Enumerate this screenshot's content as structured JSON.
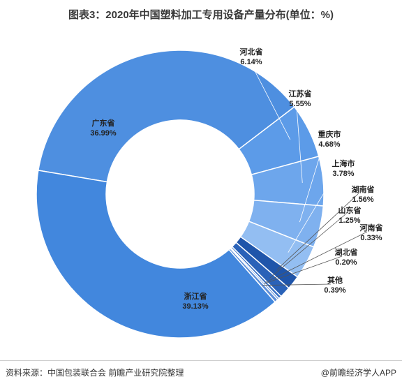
{
  "title": "图表3：2020年中国塑料加工专用设备产量分布(单位：%)",
  "footer": {
    "source": "资料来源：中国包装联合会 前瞻产业研究院整理",
    "brand": "@前瞻经济学人APP"
  },
  "colors": {
    "main": "#4a8ad8",
    "light": "#8bb5ef",
    "dark": "#1c4f9e",
    "stroke": "#ffffff"
  },
  "chart_data": {
    "type": "pie",
    "donut": true,
    "title": "图表3：2020年中国塑料加工专用设备产量分布(单位：%)",
    "slices": [
      {
        "name": "广东省",
        "value": 36.99,
        "label": "36.99%",
        "color": "#4e8fe0"
      },
      {
        "name": "河北省",
        "value": 6.14,
        "label": "6.14%",
        "color": "#5c9be8"
      },
      {
        "name": "江苏省",
        "value": 5.55,
        "label": "5.55%",
        "color": "#6da6ec"
      },
      {
        "name": "重庆市",
        "value": 4.68,
        "label": "4.68%",
        "color": "#7fb1ef"
      },
      {
        "name": "上海市",
        "value": 3.78,
        "label": "3.78%",
        "color": "#93bef2"
      },
      {
        "name": "湖南省",
        "value": 1.56,
        "label": "1.56%",
        "color": "#1f55aa"
      },
      {
        "name": "山东省",
        "value": 1.25,
        "label": "1.25%",
        "color": "#2a62b8"
      },
      {
        "name": "河南省",
        "value": 0.33,
        "label": "0.33%",
        "color": "#3670c4"
      },
      {
        "name": "湖北省",
        "value": 0.2,
        "label": "0.20%",
        "color": "#4a7fcf"
      },
      {
        "name": "其他",
        "value": 0.39,
        "label": "0.39%",
        "color": "#5d8fd8"
      },
      {
        "name": "浙江省",
        "value": 39.13,
        "label": "39.13%",
        "color": "#4287dd"
      }
    ]
  }
}
